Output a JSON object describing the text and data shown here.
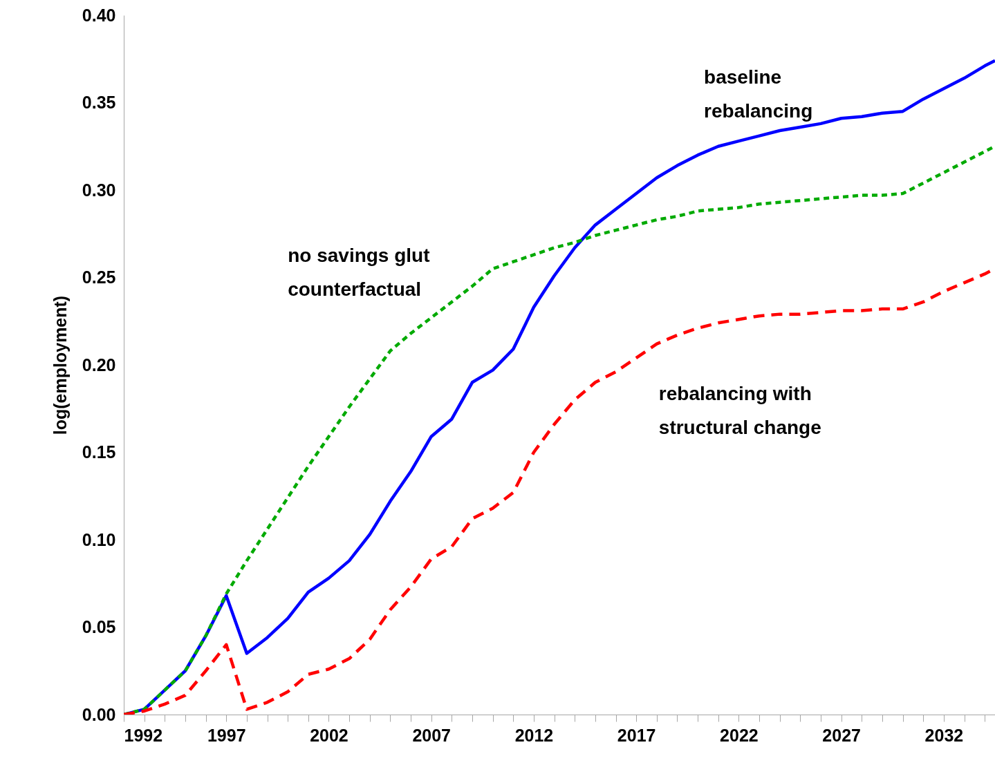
{
  "chart_data": {
    "type": "line",
    "ylabel": "log(employment)",
    "xlim": [
      1992,
      2034.5
    ],
    "ylim": [
      0,
      0.4
    ],
    "xticks": [
      1992,
      {
        "value": 1993,
        "label": null
      },
      {
        "value": 1994,
        "label": null
      },
      {
        "value": 1995,
        "label": null
      },
      {
        "value": 1996,
        "label": null
      },
      1997,
      {
        "value": 1998,
        "label": null
      },
      {
        "value": 1999,
        "label": null
      },
      {
        "value": 2000,
        "label": null
      },
      {
        "value": 2001,
        "label": null
      },
      2002,
      {
        "value": 2003,
        "label": null
      },
      {
        "value": 2004,
        "label": null
      },
      {
        "value": 2005,
        "label": null
      },
      {
        "value": 2006,
        "label": null
      },
      2007,
      {
        "value": 2008,
        "label": null
      },
      {
        "value": 2009,
        "label": null
      },
      {
        "value": 2010,
        "label": null
      },
      {
        "value": 2011,
        "label": null
      },
      2012,
      {
        "value": 2013,
        "label": null
      },
      {
        "value": 2014,
        "label": null
      },
      {
        "value": 2015,
        "label": null
      },
      {
        "value": 2016,
        "label": null
      },
      2017,
      {
        "value": 2018,
        "label": null
      },
      {
        "value": 2019,
        "label": null
      },
      {
        "value": 2020,
        "label": null
      },
      {
        "value": 2021,
        "label": null
      },
      2022,
      {
        "value": 2023,
        "label": null
      },
      {
        "value": 2024,
        "label": null
      },
      {
        "value": 2025,
        "label": null
      },
      {
        "value": 2026,
        "label": null
      },
      2027,
      {
        "value": 2028,
        "label": null
      },
      {
        "value": 2029,
        "label": null
      },
      {
        "value": 2030,
        "label": null
      },
      {
        "value": 2031,
        "label": null
      },
      2032,
      {
        "value": 2033,
        "label": null
      },
      {
        "value": 2034,
        "label": null
      }
    ],
    "yticks": [
      {
        "value": 0,
        "label": "0.00"
      },
      {
        "value": 0.05,
        "label": "0.05"
      },
      {
        "value": 0.1,
        "label": "0.10"
      },
      {
        "value": 0.15,
        "label": "0.15"
      },
      {
        "value": 0.2,
        "label": "0.20"
      },
      {
        "value": 0.25,
        "label": "0.25"
      },
      {
        "value": 0.3,
        "label": "0.30"
      },
      {
        "value": 0.35,
        "label": "0.35"
      },
      {
        "value": 0.4,
        "label": "0.40"
      }
    ],
    "series": [
      {
        "name": "baseline\nrebalancing",
        "color": "#0000ff",
        "line_style": "solid",
        "x": [
          1992,
          1993,
          1994,
          1995,
          1996,
          1997,
          1998,
          1999,
          2000,
          2001,
          2002,
          2003,
          2004,
          2005,
          2006,
          2007,
          2008,
          2009,
          2010,
          2011,
          2012,
          2013,
          2014,
          2015,
          2016,
          2017,
          2018,
          2019,
          2020,
          2021,
          2022,
          2023,
          2024,
          2025,
          2026,
          2027,
          2028,
          2029,
          2030,
          2031,
          2032,
          2033,
          2034,
          2034.5
        ],
        "values": [
          0,
          0.003,
          0.014,
          0.025,
          0.045,
          0.068,
          0.035,
          0.044,
          0.055,
          0.07,
          0.078,
          0.088,
          0.103,
          0.122,
          0.139,
          0.159,
          0.169,
          0.19,
          0.197,
          0.209,
          0.233,
          0.251,
          0.267,
          0.28,
          0.289,
          0.298,
          0.307,
          0.314,
          0.32,
          0.325,
          0.328,
          0.331,
          0.334,
          0.336,
          0.338,
          0.341,
          0.342,
          0.344,
          0.345,
          0.352,
          0.358,
          0.364,
          0.371,
          0.374
        ]
      },
      {
        "name": "no savings glut\ncounterfactual",
        "color": "#00aa00",
        "line_style": "dotted",
        "x": [
          1992,
          1993,
          1994,
          1995,
          1996,
          1997,
          1998,
          1999,
          2000,
          2001,
          2002,
          2003,
          2004,
          2005,
          2006,
          2007,
          2008,
          2009,
          2010,
          2011,
          2012,
          2013,
          2014,
          2015,
          2016,
          2017,
          2018,
          2019,
          2020,
          2021,
          2022,
          2023,
          2024,
          2025,
          2026,
          2027,
          2028,
          2029,
          2030,
          2031,
          2032,
          2033,
          2034,
          2034.5
        ],
        "values": [
          0,
          0.003,
          0.014,
          0.025,
          0.045,
          0.069,
          0.088,
          0.106,
          0.124,
          0.142,
          0.159,
          0.176,
          0.192,
          0.208,
          0.218,
          0.227,
          0.236,
          0.245,
          0.255,
          0.259,
          0.263,
          0.267,
          0.27,
          0.274,
          0.277,
          0.28,
          0.283,
          0.285,
          0.288,
          0.289,
          0.29,
          0.292,
          0.293,
          0.294,
          0.295,
          0.296,
          0.297,
          0.297,
          0.298,
          0.304,
          0.31,
          0.316,
          0.322,
          0.325
        ]
      },
      {
        "name": "rebalancing with\nstructural change",
        "color": "#ff0000",
        "line_style": "dashed",
        "x": [
          1992,
          1993,
          1994,
          1995,
          1996,
          1997,
          1998,
          1999,
          2000,
          2001,
          2002,
          2003,
          2004,
          2005,
          2006,
          2007,
          2008,
          2009,
          2010,
          2011,
          2012,
          2013,
          2014,
          2015,
          2016,
          2017,
          2018,
          2019,
          2020,
          2021,
          2022,
          2023,
          2024,
          2025,
          2026,
          2027,
          2028,
          2029,
          2030,
          2031,
          2032,
          2033,
          2034,
          2034.5
        ],
        "values": [
          0,
          0.002,
          0.006,
          0.011,
          0.025,
          0.04,
          0.003,
          0.007,
          0.013,
          0.023,
          0.026,
          0.032,
          0.043,
          0.06,
          0.073,
          0.089,
          0.096,
          0.112,
          0.118,
          0.127,
          0.15,
          0.166,
          0.18,
          0.19,
          0.196,
          0.204,
          0.212,
          0.217,
          0.221,
          0.224,
          0.226,
          0.228,
          0.229,
          0.229,
          0.23,
          0.231,
          0.231,
          0.232,
          0.232,
          0.236,
          0.242,
          0.247,
          0.252,
          0.255
        ]
      }
    ],
    "grid": false,
    "marker": "none"
  }
}
